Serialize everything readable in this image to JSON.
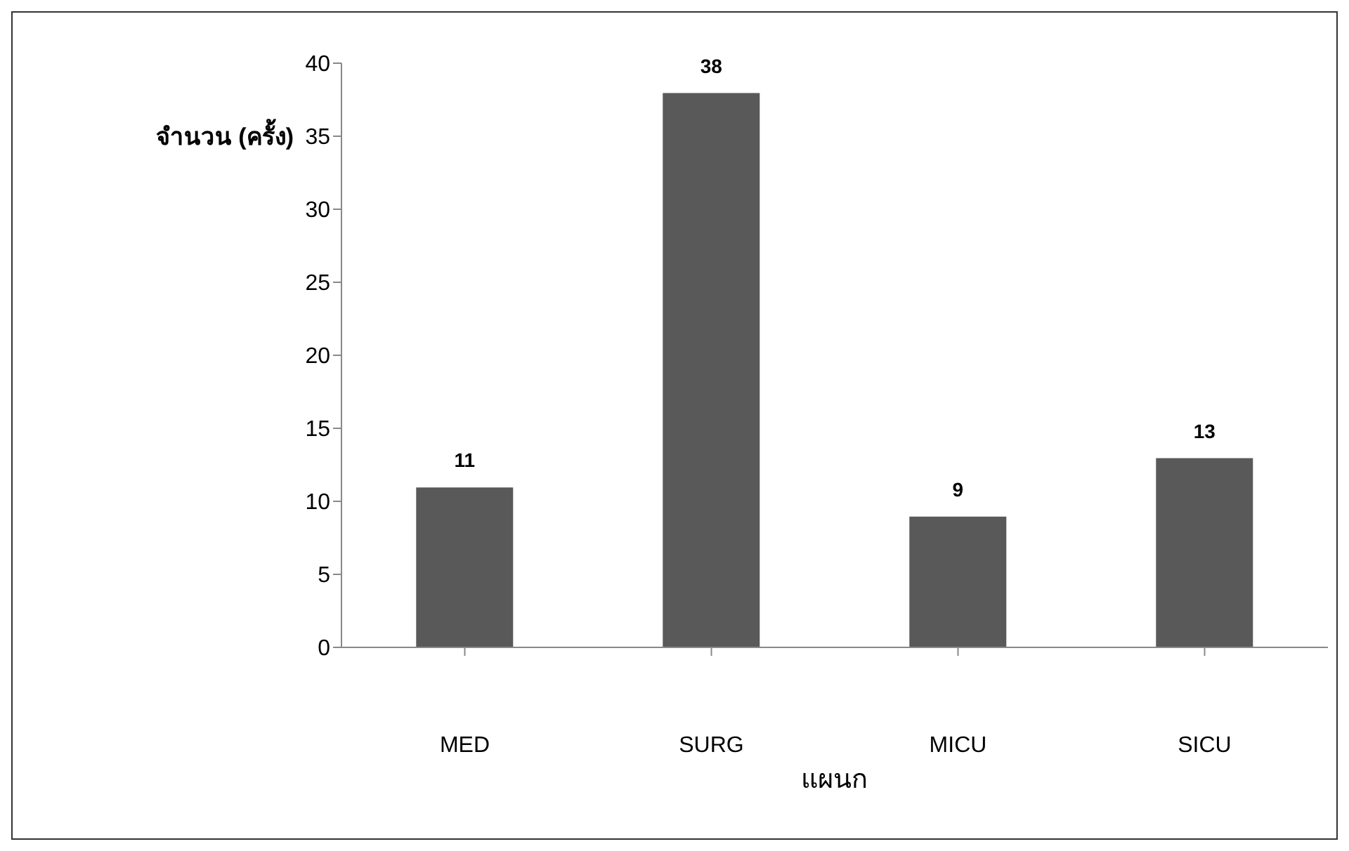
{
  "chart_data": {
    "type": "bar",
    "xlabel": "แผนก",
    "ylabel": "จำนวน (ครั้ง)",
    "categories": [
      "MED",
      "SURG",
      "MICU",
      "SICU"
    ],
    "values": [
      11,
      38,
      9,
      13
    ],
    "color": "#595959",
    "ylim": [
      0,
      40
    ],
    "yticks": [
      0,
      5,
      10,
      15,
      20,
      25,
      30,
      35,
      40
    ],
    "grid": false,
    "data_labels": true,
    "legend": false
  }
}
